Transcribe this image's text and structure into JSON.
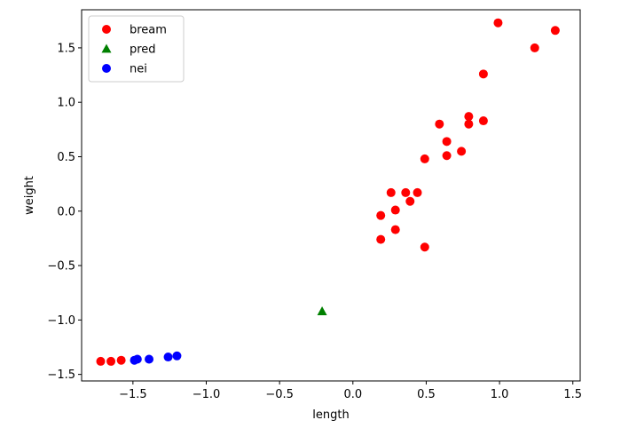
{
  "chart_data": {
    "type": "scatter",
    "title": "",
    "xlabel": "length",
    "ylabel": "weight",
    "xlim": [
      -1.85,
      1.55
    ],
    "ylim": [
      -1.56,
      1.85
    ],
    "xticks": [
      -1.5,
      -1.0,
      -0.5,
      0.0,
      0.5,
      1.0,
      1.5
    ],
    "xtick_labels": [
      "−1.5",
      "−1.0",
      "−0.5",
      "0.0",
      "0.5",
      "1.0",
      "1.5"
    ],
    "yticks": [
      -1.5,
      -1.0,
      -0.5,
      0.0,
      0.5,
      1.0,
      1.5
    ],
    "ytick_labels": [
      "−1.5",
      "−1.0",
      "−0.5",
      "0.0",
      "0.5",
      "1.0",
      "1.5"
    ],
    "grid": false,
    "legend_position": "upper-left",
    "series": [
      {
        "name": "bream",
        "marker": "circle",
        "color": "#ff0000",
        "points": [
          {
            "x": -1.72,
            "y": -1.38
          },
          {
            "x": -1.65,
            "y": -1.38
          },
          {
            "x": -1.58,
            "y": -1.37
          },
          {
            "x": 0.19,
            "y": -0.26
          },
          {
            "x": 0.19,
            "y": -0.04
          },
          {
            "x": 0.26,
            "y": 0.17
          },
          {
            "x": 0.29,
            "y": 0.01
          },
          {
            "x": 0.29,
            "y": -0.17
          },
          {
            "x": 0.36,
            "y": 0.17
          },
          {
            "x": 0.39,
            "y": 0.09
          },
          {
            "x": 0.44,
            "y": 0.17
          },
          {
            "x": 0.49,
            "y": 0.48
          },
          {
            "x": 0.49,
            "y": -0.33
          },
          {
            "x": 0.59,
            "y": 0.8
          },
          {
            "x": 0.64,
            "y": 0.51
          },
          {
            "x": 0.64,
            "y": 0.64
          },
          {
            "x": 0.74,
            "y": 0.55
          },
          {
            "x": 0.79,
            "y": 0.87
          },
          {
            "x": 0.79,
            "y": 0.8
          },
          {
            "x": 0.89,
            "y": 0.83
          },
          {
            "x": 0.89,
            "y": 1.26
          },
          {
            "x": 0.99,
            "y": 1.73
          },
          {
            "x": 1.24,
            "y": 1.5
          },
          {
            "x": 1.38,
            "y": 1.66
          }
        ]
      },
      {
        "name": "pred",
        "marker": "triangle",
        "color": "#008000",
        "points": [
          {
            "x": -0.21,
            "y": -0.92
          }
        ]
      },
      {
        "name": "nei",
        "marker": "circle",
        "color": "#0000ff",
        "points": [
          {
            "x": -1.49,
            "y": -1.37
          },
          {
            "x": -1.47,
            "y": -1.36
          },
          {
            "x": -1.39,
            "y": -1.36
          },
          {
            "x": -1.26,
            "y": -1.34
          },
          {
            "x": -1.2,
            "y": -1.33
          }
        ]
      }
    ]
  }
}
